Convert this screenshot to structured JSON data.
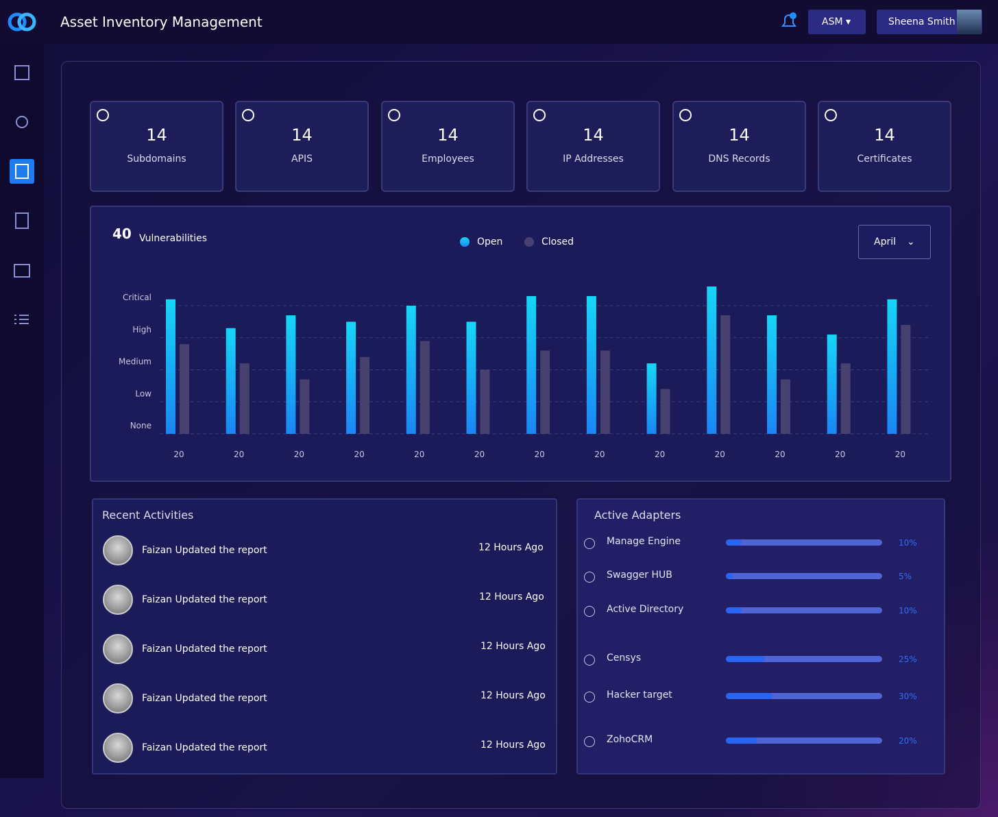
{
  "header": {
    "title": "Asset Inventory Management",
    "workspace": "ASM",
    "user": "Sheena Smith"
  },
  "stats": [
    {
      "value": 14,
      "label": "Subdomains"
    },
    {
      "value": 14,
      "label": "APIS"
    },
    {
      "value": 14,
      "label": "Employees"
    },
    {
      "value": 14,
      "label": "IP Addresses"
    },
    {
      "value": 14,
      "label": "DNS Records"
    },
    {
      "value": 14,
      "label": "Certificates"
    }
  ],
  "chart_data": {
    "type": "bar",
    "count": 40,
    "title": "Vulnerabilities",
    "filter": "April",
    "categories": [
      "20",
      "20",
      "20",
      "20",
      "20",
      "20",
      "20",
      "20",
      "20",
      "20",
      "20",
      "20",
      "20"
    ],
    "series": [
      {
        "name": "Open",
        "color": "#1a86f5",
        "values": [
          4.2,
          3.3,
          3.7,
          3.5,
          4.0,
          3.5,
          4.3,
          4.3,
          2.2,
          4.6,
          3.7,
          3.1,
          4.2
        ]
      },
      {
        "name": "Closed",
        "color": "#47416f",
        "values": [
          2.8,
          2.2,
          1.7,
          2.4,
          2.9,
          2.0,
          2.6,
          2.6,
          1.4,
          3.7,
          1.7,
          2.2,
          3.4
        ]
      }
    ],
    "ylim": [
      0,
      4.6
    ],
    "yticks": [
      {
        "value": 0,
        "label": "None"
      },
      {
        "value": 1,
        "label": "Low"
      },
      {
        "value": 2,
        "label": "Medium"
      },
      {
        "value": 3,
        "label": "High"
      },
      {
        "value": 4,
        "label": "Critical"
      }
    ],
    "grid": true
  },
  "recent": {
    "title": "Recent Activities",
    "items": [
      {
        "text": "Faizan Updated the report",
        "time": "12 Hours Ago"
      },
      {
        "text": "Faizan Updated the report",
        "time": "12 Hours Ago"
      },
      {
        "text": "Faizan Updated the report",
        "time": "12 Hours Ago"
      },
      {
        "text": "Faizan Updated the report",
        "time": "12 Hours Ago"
      },
      {
        "text": "Faizan Updated the report",
        "time": "12 Hours Ago"
      }
    ]
  },
  "adapters": {
    "title": "Active Adapters",
    "items": [
      {
        "name": "Manage Engine",
        "value": 10,
        "label": "10%"
      },
      {
        "name": "Swagger HUB",
        "value": 5,
        "label": "5%"
      },
      {
        "name": "Active Directory",
        "value": 10,
        "label": "10%"
      },
      {
        "name": "Censys",
        "value": 25,
        "label": "25%"
      },
      {
        "name": "Hacker target",
        "value": 30,
        "label": "30%"
      },
      {
        "name": "ZohoCRM",
        "value": 20,
        "label": "20%"
      }
    ]
  }
}
